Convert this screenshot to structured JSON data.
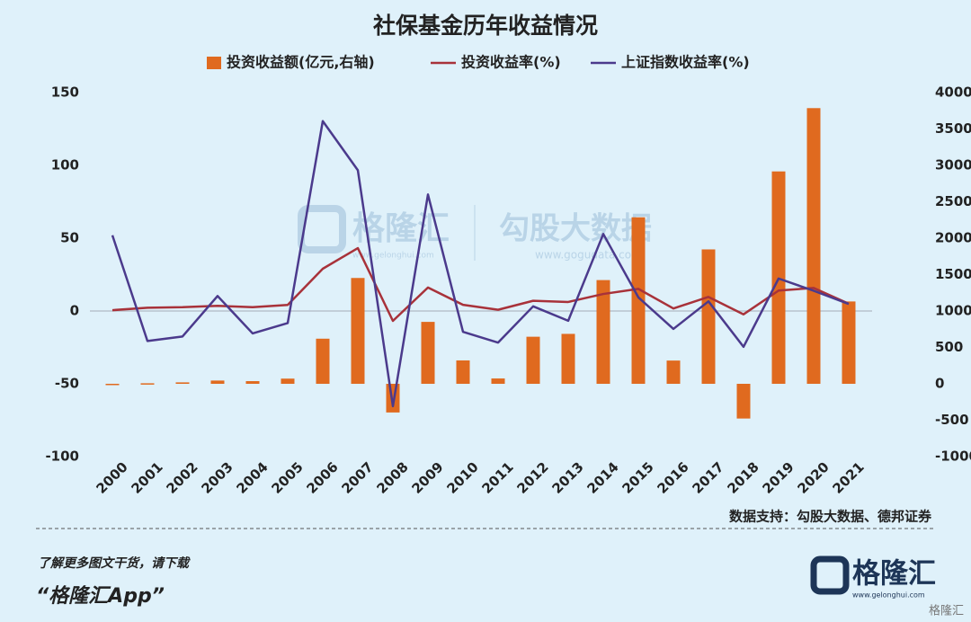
{
  "chart_data": {
    "type": "bar",
    "title": "社保基金历年收益情况",
    "categories": [
      "2000",
      "2001",
      "2002",
      "2003",
      "2004",
      "2005",
      "2006",
      "2007",
      "2008",
      "2009",
      "2010",
      "2011",
      "2012",
      "2013",
      "2014",
      "2015",
      "2016",
      "2017",
      "2018",
      "2019",
      "2020",
      "2021"
    ],
    "series": [
      {
        "name": "投资收益额(亿元,右轴)",
        "type": "bar",
        "axis": "y2",
        "color": "#e06a1f",
        "values": [
          0.17,
          7.42,
          19.76,
          44.71,
          36.72,
          71.22,
          619.79,
          1453.5,
          -393.72,
          850.49,
          321.22,
          73.37,
          646.59,
          685.87,
          1424.6,
          2287,
          319.4,
          1846,
          -476.85,
          2917.18,
          3786.6,
          1131
        ]
      },
      {
        "name": "投资收益率(%)",
        "type": "line",
        "color": "#a8323a",
        "values": [
          0.57,
          2.25,
          2.59,
          3.56,
          2.61,
          4.16,
          29.01,
          43.19,
          -6.79,
          16.12,
          4.23,
          0.84,
          7.01,
          6.2,
          11.69,
          15.19,
          1.73,
          9.68,
          -2.28,
          14.06,
          15.84,
          5
        ]
      },
      {
        "name": "上证指数收益率(%)",
        "type": "line",
        "color": "#4b3a8c",
        "values": [
          52,
          -20.6,
          -17.5,
          10.3,
          -15.4,
          -8.3,
          130.4,
          96.7,
          -65.4,
          80,
          -14.3,
          -21.7,
          3.2,
          -6.7,
          52.9,
          9.4,
          -12.3,
          6.6,
          -24.6,
          22.3,
          13.9,
          4.8
        ]
      }
    ],
    "ylim": [
      -100,
      150
    ],
    "yticks": [
      -100,
      -50,
      0,
      50,
      100,
      150
    ],
    "y2lim": [
      -1000,
      4000
    ],
    "y2ticks": [
      -1000,
      -500,
      0,
      500,
      1000,
      1500,
      2000,
      2500,
      3000,
      3500,
      4000
    ],
    "zero_line": true
  },
  "watermark": {
    "brand": "格隆汇",
    "brand_url": "www.gelonghui.com",
    "data": "勾股大数据",
    "data_url": "www.gogudata.com"
  },
  "source": "数据支持：勾股大数据、德邦证券",
  "footer": {
    "promo": "了解更多图文干货，请下载",
    "app": "“格隆汇App”",
    "logo": "格隆汇",
    "logo_url": "www.gelonghui.com",
    "corner": "格隆汇"
  }
}
